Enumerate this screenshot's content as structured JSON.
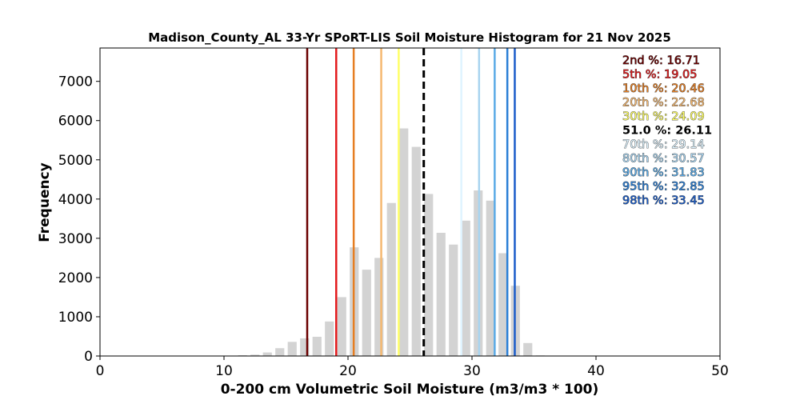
{
  "chart_data": {
    "type": "bar",
    "title": "Madison_County_AL 33-Yr SPoRT-LIS Soil Moisture Histogram for 21 Nov 2025",
    "xlabel": "0-200 cm Volumetric Soil Moisture (m3/m3 * 100)",
    "ylabel": "Frequency",
    "xlim": [
      0,
      50
    ],
    "ylim": [
      0,
      7850
    ],
    "xticks": [
      0,
      10,
      20,
      30,
      40,
      50
    ],
    "yticks": [
      0,
      1000,
      2000,
      3000,
      4000,
      5000,
      6000,
      7000
    ],
    "bar_color": "#d3d3d3",
    "bin_width": 1.0,
    "bars": [
      {
        "x": 10.5,
        "value": 5
      },
      {
        "x": 11.5,
        "value": 20
      },
      {
        "x": 12.5,
        "value": 35
      },
      {
        "x": 13.5,
        "value": 90
      },
      {
        "x": 14.5,
        "value": 200
      },
      {
        "x": 15.5,
        "value": 360
      },
      {
        "x": 16.5,
        "value": 450
      },
      {
        "x": 17.5,
        "value": 490
      },
      {
        "x": 18.5,
        "value": 880
      },
      {
        "x": 19.5,
        "value": 1500
      },
      {
        "x": 20.5,
        "value": 2770
      },
      {
        "x": 21.5,
        "value": 2200
      },
      {
        "x": 22.5,
        "value": 2500
      },
      {
        "x": 23.5,
        "value": 3900
      },
      {
        "x": 24.5,
        "value": 5800
      },
      {
        "x": 25.5,
        "value": 5330
      },
      {
        "x": 26.5,
        "value": 4130
      },
      {
        "x": 27.5,
        "value": 3140
      },
      {
        "x": 28.5,
        "value": 2840
      },
      {
        "x": 29.5,
        "value": 3450
      },
      {
        "x": 30.5,
        "value": 4220
      },
      {
        "x": 31.5,
        "value": 3960
      },
      {
        "x": 32.5,
        "value": 2620
      },
      {
        "x": 33.5,
        "value": 1790
      },
      {
        "x": 34.5,
        "value": 330
      },
      {
        "x": 35.5,
        "value": 15
      }
    ],
    "percentile_lines": [
      {
        "label": "2nd %: 16.71",
        "value": 16.71,
        "color": "#6b0000",
        "dashed": false
      },
      {
        "label": "5th %: 19.05",
        "value": 19.05,
        "color": "#e31a1c",
        "dashed": false
      },
      {
        "label": "10th %: 20.46",
        "value": 20.46,
        "color": "#e67e22",
        "dashed": false
      },
      {
        "label": "20th %: 22.68",
        "value": 22.68,
        "color": "#f5b870",
        "dashed": false
      },
      {
        "label": "30th %: 24.09",
        "value": 24.09,
        "color": "#ffff66",
        "dashed": false
      },
      {
        "label": "51.0 %: 26.11",
        "value": 26.11,
        "color": "#000000",
        "dashed": true
      },
      {
        "label": "70th %: 29.14",
        "value": 29.14,
        "color": "#dff4ff",
        "dashed": false
      },
      {
        "label": "80th %: 30.57",
        "value": 30.57,
        "color": "#a8d4f0",
        "dashed": false
      },
      {
        "label": "90th %: 31.83",
        "value": 31.83,
        "color": "#5aaae6",
        "dashed": false
      },
      {
        "label": "95th %: 32.85",
        "value": 32.85,
        "color": "#2b7fd6",
        "dashed": false
      },
      {
        "label": "98th %: 33.45",
        "value": 33.45,
        "color": "#1a5cc9",
        "dashed": false
      }
    ],
    "legend_placement": "top-right",
    "grid": false
  }
}
